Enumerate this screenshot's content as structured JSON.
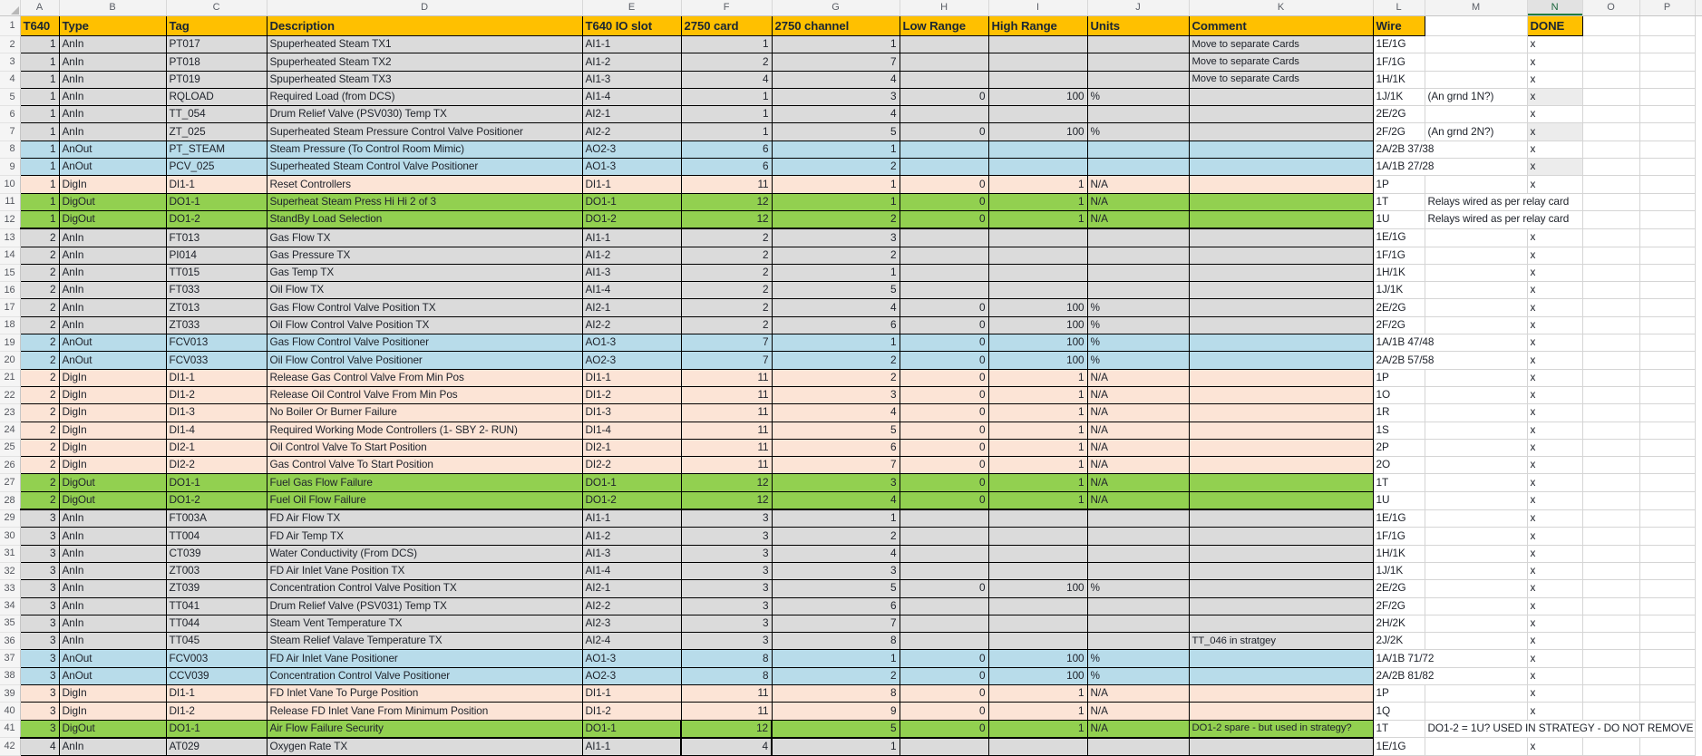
{
  "sheet": {
    "column_letters": [
      "A",
      "B",
      "C",
      "D",
      "E",
      "F",
      "G",
      "H",
      "I",
      "J",
      "K",
      "L",
      "M",
      "N",
      "O",
      "P"
    ],
    "selected_column": "N",
    "header_row_number": "1",
    "headers": {
      "t640": "T640",
      "type": "Type",
      "tag": "Tag",
      "desc": "Description",
      "slot": "T640 IO slot",
      "card": "2750 card",
      "ch": "2750  channel",
      "low": "Low Range",
      "high": "High Range",
      "units": "Units",
      "comment": "Comment",
      "wire": "Wire",
      "m": "",
      "done": "DONE"
    },
    "rows": [
      {
        "num": "2",
        "t640": "1",
        "type": "AnIn",
        "tag": "PT017",
        "desc": "Spuperheated Steam TX1",
        "slot": "AI1-1",
        "card": "1",
        "ch": "1",
        "low": "",
        "high": "",
        "units": "",
        "comment": "Move to separate Cards",
        "wire": "1E/1G",
        "m": "",
        "done": "x"
      },
      {
        "num": "3",
        "t640": "1",
        "type": "AnIn",
        "tag": "PT018",
        "desc": "Spuperheated Steam TX2",
        "slot": "AI1-2",
        "card": "2",
        "ch": "7",
        "low": "",
        "high": "",
        "units": "",
        "comment": "Move to separate Cards",
        "wire": "1F/1G",
        "m": "",
        "done": "x"
      },
      {
        "num": "4",
        "t640": "1",
        "type": "AnIn",
        "tag": "PT019",
        "desc": "Spuperheated Steam TX3",
        "slot": "AI1-3",
        "card": "4",
        "ch": "4",
        "low": "",
        "high": "",
        "units": "",
        "comment": "Move to separate Cards",
        "wire": "1H/1K",
        "m": "",
        "done": "x"
      },
      {
        "num": "5",
        "t640": "1",
        "type": "AnIn",
        "tag": "RQLOAD",
        "desc": "Required Load  (from DCS)",
        "slot": "AI1-4",
        "card": "1",
        "ch": "3",
        "low": "0",
        "high": "100",
        "units": "%",
        "comment": "",
        "wire": "1J/1K",
        "m": "(An grnd 1N?)",
        "done": "x",
        "ngray": true
      },
      {
        "num": "6",
        "t640": "1",
        "type": "AnIn",
        "tag": "TT_054",
        "desc": "Drum Relief Valve  (PSV030) Temp TX",
        "slot": "AI2-1",
        "card": "1",
        "ch": "4",
        "low": "",
        "high": "",
        "units": "",
        "comment": "",
        "wire": "2E/2G",
        "m": "",
        "done": "x"
      },
      {
        "num": "7",
        "t640": "1",
        "type": "AnIn",
        "tag": "ZT_025",
        "desc": "Superheated Steam Pressure Control Valve Positioner",
        "slot": "AI2-2",
        "card": "1",
        "ch": "5",
        "low": "0",
        "high": "100",
        "units": "%",
        "comment": "",
        "wire": "2F/2G",
        "m": "(An grnd 2N?)",
        "done": "x",
        "ngray": true
      },
      {
        "num": "8",
        "t640": "1",
        "type": "AnOut",
        "tag": "PT_STEAM",
        "desc": "Steam Pressure (To Control Room Mimic)",
        "slot": "AO2-3",
        "card": "6",
        "ch": "1",
        "low": "",
        "high": "",
        "units": "",
        "comment": "",
        "wire": "2A/2B 37/38",
        "m": "",
        "done": "x"
      },
      {
        "num": "9",
        "t640": "1",
        "type": "AnOut",
        "tag": "PCV_025",
        "desc": "Superheated Steam Control Valve Positioner",
        "slot": "AO1-3",
        "card": "6",
        "ch": "2",
        "low": "",
        "high": "",
        "units": "",
        "comment": "",
        "wire": "1A/1B 27/28",
        "m": "",
        "done": "x",
        "ngray": true
      },
      {
        "num": "10",
        "t640": "1",
        "type": "DigIn",
        "tag": "DI1-1",
        "desc": "Reset Controllers",
        "slot": "DI1-1",
        "card": "11",
        "ch": "1",
        "low": "0",
        "high": "1",
        "units": "N/A",
        "comment": "",
        "wire": "1P",
        "m": "",
        "done": "x"
      },
      {
        "num": "11",
        "t640": "1",
        "type": "DigOut",
        "tag": "DO1-1",
        "desc": "Superheat Steam Press Hi Hi 2 of 3",
        "slot": "DO1-1",
        "card": "12",
        "ch": "1",
        "low": "0",
        "high": "1",
        "units": "N/A",
        "comment": "",
        "wire": "1T",
        "m": "Relays wired as per relay card",
        "done": "",
        "mspan": 2
      },
      {
        "num": "12",
        "t640": "1",
        "type": "DigOut",
        "tag": "DO1-2",
        "desc": "StandBy Load Selection",
        "slot": "DO1-2",
        "card": "12",
        "ch": "2",
        "low": "0",
        "high": "1",
        "units": "N/A",
        "comment": "",
        "wire": "1U",
        "m": "Relays wired as per relay card",
        "done": "",
        "mspan": 2,
        "tk": true
      },
      {
        "num": "13",
        "t640": "2",
        "type": "AnIn",
        "tag": "FT013",
        "desc": "Gas Flow TX",
        "slot": "AI1-1",
        "card": "2",
        "ch": "3",
        "low": "",
        "high": "",
        "units": "",
        "comment": "",
        "wire": "1E/1G",
        "m": "",
        "done": "x"
      },
      {
        "num": "14",
        "t640": "2",
        "type": "AnIn",
        "tag": "PI014",
        "desc": "Gas Pressure TX",
        "slot": "AI1-2",
        "card": "2",
        "ch": "2",
        "low": "",
        "high": "",
        "units": "",
        "comment": "",
        "wire": "1F/1G",
        "m": "",
        "done": "x"
      },
      {
        "num": "15",
        "t640": "2",
        "type": "AnIn",
        "tag": "TT015",
        "desc": "Gas Temp TX",
        "slot": "AI1-3",
        "card": "2",
        "ch": "1",
        "low": "",
        "high": "",
        "units": "",
        "comment": "",
        "wire": "1H/1K",
        "m": "",
        "done": "x"
      },
      {
        "num": "16",
        "t640": "2",
        "type": "AnIn",
        "tag": "FT033",
        "desc": "Oil Flow TX",
        "slot": "AI1-4",
        "card": "2",
        "ch": "5",
        "low": "",
        "high": "",
        "units": "",
        "comment": "",
        "wire": "1J/1K",
        "m": "",
        "done": "x"
      },
      {
        "num": "17",
        "t640": "2",
        "type": "AnIn",
        "tag": "ZT013",
        "desc": "Gas Flow Control Valve Position TX",
        "slot": "AI2-1",
        "card": "2",
        "ch": "4",
        "low": "0",
        "high": "100",
        "units": "%",
        "comment": "",
        "wire": "2E/2G",
        "m": "",
        "done": "x"
      },
      {
        "num": "18",
        "t640": "2",
        "type": "AnIn",
        "tag": "ZT033",
        "desc": "Oil Flow Control Valve Position TX",
        "slot": "AI2-2",
        "card": "2",
        "ch": "6",
        "low": "0",
        "high": "100",
        "units": "%",
        "comment": "",
        "wire": "2F/2G",
        "m": "",
        "done": "x"
      },
      {
        "num": "19",
        "t640": "2",
        "type": "AnOut",
        "tag": "FCV013",
        "desc": "Gas Flow Control Valve Positioner",
        "slot": "AO1-3",
        "card": "7",
        "ch": "1",
        "low": "0",
        "high": "100",
        "units": "%",
        "comment": "",
        "wire": "1A/1B 47/48",
        "m": "",
        "done": "x"
      },
      {
        "num": "20",
        "t640": "2",
        "type": "AnOut",
        "tag": "FCV033",
        "desc": "Oil Flow Control Valve Positioner",
        "slot": "AO2-3",
        "card": "7",
        "ch": "2",
        "low": "0",
        "high": "100",
        "units": "%",
        "comment": "",
        "wire": "2A/2B 57/58",
        "m": "",
        "done": "x"
      },
      {
        "num": "21",
        "t640": "2",
        "type": "DigIn",
        "tag": "DI1-1",
        "desc": "Release Gas Control Valve From Min Pos",
        "slot": "DI1-1",
        "card": "11",
        "ch": "2",
        "low": "0",
        "high": "1",
        "units": "N/A",
        "comment": "",
        "wire": "1P",
        "m": "",
        "done": "x"
      },
      {
        "num": "22",
        "t640": "2",
        "type": "DigIn",
        "tag": "DI1-2",
        "desc": "Release Oil Control Valve From Min Pos",
        "slot": "DI1-2",
        "card": "11",
        "ch": "3",
        "low": "0",
        "high": "1",
        "units": "N/A",
        "comment": "",
        "wire": "1O",
        "m": "",
        "done": "x"
      },
      {
        "num": "23",
        "t640": "2",
        "type": "DigIn",
        "tag": "DI1-3",
        "desc": "No Boiler Or Burner Failure",
        "slot": "DI1-3",
        "card": "11",
        "ch": "4",
        "low": "0",
        "high": "1",
        "units": "N/A",
        "comment": "",
        "wire": "1R",
        "m": "",
        "done": "x"
      },
      {
        "num": "24",
        "t640": "2",
        "type": "DigIn",
        "tag": "DI1-4",
        "desc": "Required Working Mode Controllers (1- SBY 2- RUN)",
        "slot": "DI1-4",
        "card": "11",
        "ch": "5",
        "low": "0",
        "high": "1",
        "units": "N/A",
        "comment": "",
        "wire": "1S",
        "m": "",
        "done": "x"
      },
      {
        "num": "25",
        "t640": "2",
        "type": "DigIn",
        "tag": "DI2-1",
        "desc": "Oil Control Valve To Start Position",
        "slot": "DI2-1",
        "card": "11",
        "ch": "6",
        "low": "0",
        "high": "1",
        "units": "N/A",
        "comment": "",
        "wire": "2P",
        "m": "",
        "done": "x"
      },
      {
        "num": "26",
        "t640": "2",
        "type": "DigIn",
        "tag": "DI2-2",
        "desc": "Gas Control Valve To Start Position",
        "slot": "DI2-2",
        "card": "11",
        "ch": "7",
        "low": "0",
        "high": "1",
        "units": "N/A",
        "comment": "",
        "wire": "2O",
        "m": "",
        "done": "x"
      },
      {
        "num": "27",
        "t640": "2",
        "type": "DigOut",
        "tag": "DO1-1",
        "desc": "Fuel Gas Flow Failure",
        "slot": "DO1-1",
        "card": "12",
        "ch": "3",
        "low": "0",
        "high": "1",
        "units": "N/A",
        "comment": "",
        "wire": "1T",
        "m": "",
        "done": "x"
      },
      {
        "num": "28",
        "t640": "2",
        "type": "DigOut",
        "tag": "DO1-2",
        "desc": "Fuel Oil Flow Failure",
        "slot": "DO1-2",
        "card": "12",
        "ch": "4",
        "low": "0",
        "high": "1",
        "units": "N/A",
        "comment": "",
        "wire": "1U",
        "m": "",
        "done": "x",
        "tk": true
      },
      {
        "num": "29",
        "t640": "3",
        "type": "AnIn",
        "tag": "FT003A",
        "desc": "FD Air Flow TX",
        "slot": "AI1-1",
        "card": "3",
        "ch": "1",
        "low": "",
        "high": "",
        "units": "",
        "comment": "",
        "wire": "1E/1G",
        "m": "",
        "done": "x"
      },
      {
        "num": "30",
        "t640": "3",
        "type": "AnIn",
        "tag": "TT004",
        "desc": "FD Air Temp TX",
        "slot": "AI1-2",
        "card": "3",
        "ch": "2",
        "low": "",
        "high": "",
        "units": "",
        "comment": "",
        "wire": "1F/1G",
        "m": "",
        "done": "x"
      },
      {
        "num": "31",
        "t640": "3",
        "type": "AnIn",
        "tag": "CT039",
        "desc": "Water Conductivity (From DCS)",
        "slot": "AI1-3",
        "card": "3",
        "ch": "4",
        "low": "",
        "high": "",
        "units": "",
        "comment": "",
        "wire": "1H/1K",
        "m": "",
        "done": "x"
      },
      {
        "num": "32",
        "t640": "3",
        "type": "AnIn",
        "tag": "ZT003",
        "desc": "FD Air Inlet Vane Position TX",
        "slot": "AI1-4",
        "card": "3",
        "ch": "3",
        "low": "",
        "high": "",
        "units": "",
        "comment": "",
        "wire": "1J/1K",
        "m": "",
        "done": "x"
      },
      {
        "num": "33",
        "t640": "3",
        "type": "AnIn",
        "tag": "ZT039",
        "desc": "Concentration Control Valve Position TX",
        "slot": "AI2-1",
        "card": "3",
        "ch": "5",
        "low": "0",
        "high": "100",
        "units": "%",
        "comment": "",
        "wire": "2E/2G",
        "m": "",
        "done": "x"
      },
      {
        "num": "34",
        "t640": "3",
        "type": "AnIn",
        "tag": "TT041",
        "desc": "Drum Relief Valve  (PSV031) Temp TX",
        "slot": "AI2-2",
        "card": "3",
        "ch": "6",
        "low": "",
        "high": "",
        "units": "",
        "comment": "",
        "wire": "2F/2G",
        "m": "",
        "done": "x"
      },
      {
        "num": "35",
        "t640": "3",
        "type": "AnIn",
        "tag": "TT044",
        "desc": "Steam Vent Temperature TX",
        "slot": "AI2-3",
        "card": "3",
        "ch": "7",
        "low": "",
        "high": "",
        "units": "",
        "comment": "",
        "wire": "2H/2K",
        "m": "",
        "done": "x"
      },
      {
        "num": "36",
        "t640": "3",
        "type": "AnIn",
        "tag": "TT045",
        "desc": "Steam Relief Valave Temperature TX",
        "slot": "AI2-4",
        "card": "3",
        "ch": "8",
        "low": "",
        "high": "",
        "units": "",
        "comment": "TT_046 in stratgey",
        "wire": "2J/2K",
        "m": "",
        "done": "x"
      },
      {
        "num": "37",
        "t640": "3",
        "type": "AnOut",
        "tag": "FCV003",
        "desc": "FD Air Inlet Vane Positioner",
        "slot": "AO1-3",
        "card": "8",
        "ch": "1",
        "low": "0",
        "high": "100",
        "units": "%",
        "comment": "",
        "wire": "1A/1B 71/72",
        "m": "",
        "done": "x"
      },
      {
        "num": "38",
        "t640": "3",
        "type": "AnOut",
        "tag": "CCV039",
        "desc": "Concentration Control Valve Positioner",
        "slot": "AO2-3",
        "card": "8",
        "ch": "2",
        "low": "0",
        "high": "100",
        "units": "%",
        "comment": "",
        "wire": "2A/2B 81/82",
        "m": "",
        "done": "x"
      },
      {
        "num": "39",
        "t640": "3",
        "type": "DigIn",
        "tag": "DI1-1",
        "desc": "FD Inlet Vane To Purge Position",
        "slot": "DI1-1",
        "card": "11",
        "ch": "8",
        "low": "0",
        "high": "1",
        "units": "N/A",
        "comment": "",
        "wire": "1P",
        "m": "",
        "done": "x"
      },
      {
        "num": "40",
        "t640": "3",
        "type": "DigIn",
        "tag": "DI1-2",
        "desc": "Release FD Inlet Vane From Minimum Position",
        "slot": "DI1-2",
        "card": "11",
        "ch": "9",
        "low": "0",
        "high": "1",
        "units": "N/A",
        "comment": "",
        "wire": "1Q",
        "m": "",
        "done": "x"
      },
      {
        "num": "41",
        "t640": "3",
        "type": "DigOut",
        "tag": "DO1-1",
        "desc": "Air Flow Failure Security",
        "slot": "DO1-1",
        "card": "12",
        "ch": "5",
        "low": "0",
        "high": "1",
        "units": "N/A",
        "comment": "DO1-2 spare - but used in strategy?",
        "wire": "1T",
        "m": "DO1-2 = 1U? USED IN STRATEGY - DO NOT REMOVE",
        "done": "",
        "mspan": 4,
        "tk": true,
        "fb": true
      },
      {
        "num": "42",
        "t640": "4",
        "type": "AnIn",
        "tag": "AT029",
        "desc": "Oxygen Rate TX",
        "slot": "AI1-1",
        "card": "4",
        "ch": "1",
        "low": "",
        "high": "",
        "units": "",
        "comment": "",
        "wire": "1E/1G",
        "m": "",
        "done": "x",
        "fb": true
      }
    ]
  },
  "colors": {
    "header_fill": "#FFC000",
    "anin_fill": "#DBDBDB",
    "anout_fill": "#B8DCEA",
    "digin_fill": "#FCE4D6",
    "digout_fill": "#92D050",
    "selected_column_underline": "#1E7B41"
  }
}
